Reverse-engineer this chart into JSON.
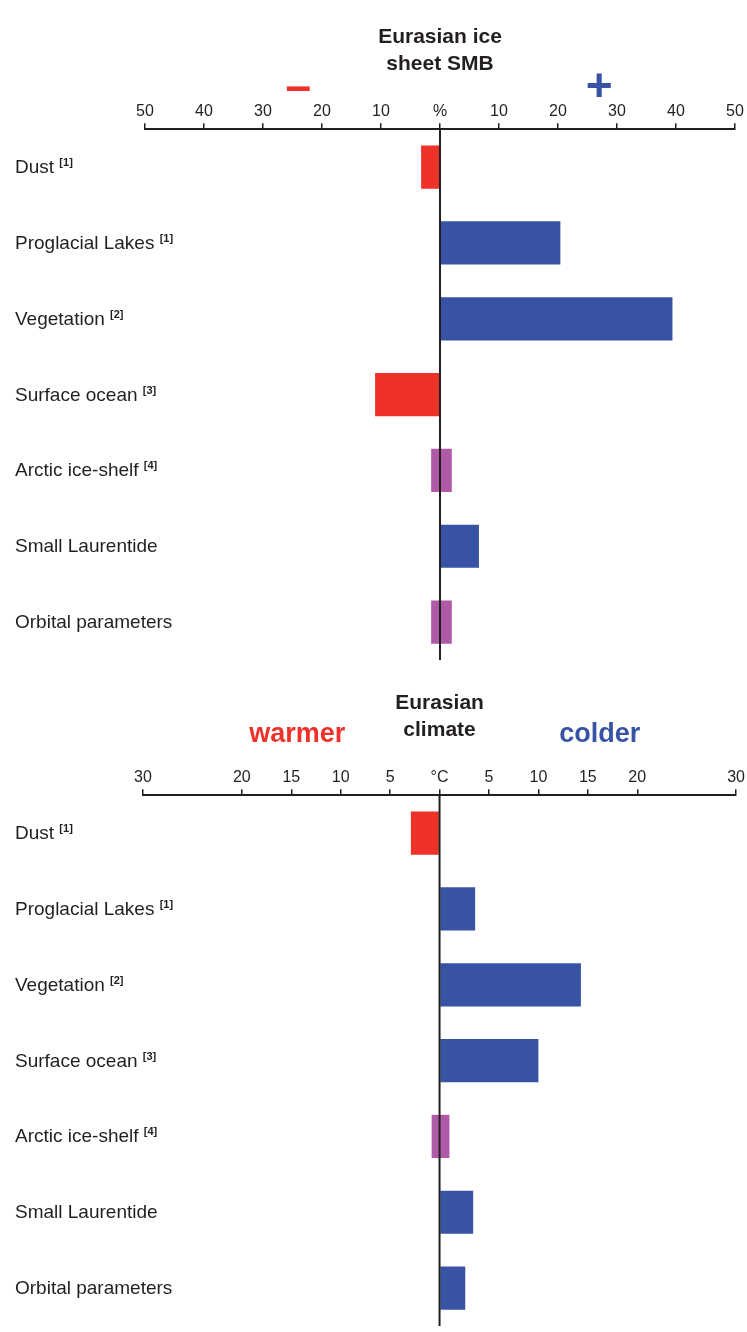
{
  "chart_data": [
    {
      "type": "bar",
      "orientation": "horizontal",
      "title": "Eurasian ice sheet SMB",
      "categories": [
        "Dust $^{[1]}$",
        "Proglacial Lakes $^{[1]}$",
        "Vegetation $^{[2]}$",
        "Surface ocean $^{[3]}$",
        "Arctic ice-shelf $^{[4]}$",
        "Small Laurentide",
        "Orbital parameters"
      ],
      "values": [
        -3.2,
        20.4,
        39.4,
        -11,
        3.5,
        6.6,
        3.5
      ],
      "base": [
        0,
        0,
        0,
        0,
        -1.5,
        0,
        -1.5
      ],
      "colors": [
        "#ee3129",
        "#3853a4",
        "#3853a4",
        "#ee3129",
        "#b05aa7",
        "#3853a4",
        "#b05aa7"
      ],
      "xlim": [
        -50,
        50
      ],
      "xticks": [
        {
          "value": -50,
          "label": "50"
        },
        {
          "value": -40,
          "label": "40"
        },
        {
          "value": -30,
          "label": "30"
        },
        {
          "value": -20,
          "label": "20"
        },
        {
          "value": -10,
          "label": "10"
        },
        {
          "value": 0,
          "label": "%"
        },
        10,
        20,
        30,
        40,
        50
      ],
      "annotations": [
        "–",
        "+"
      ],
      "grid": false,
      "legend": false,
      "ref_lines": [
        {
          "axis": "x",
          "value": 0,
          "color": "#231f20"
        }
      ]
    },
    {
      "type": "bar",
      "orientation": "horizontal",
      "title": "Eurasian climate",
      "categories": [
        "Dust $^{[1]}$",
        "Proglacial Lakes $^{[1]}$",
        "Vegetation $^{[2]}$",
        "Surface ocean $^{[3]}$",
        "Arctic ice-shelf $^{[4]}$",
        "Small Laurentide",
        "Orbital parameters"
      ],
      "values": [
        -2.9,
        3.6,
        14.3,
        10,
        1.8,
        3.4,
        2.6
      ],
      "base": [
        0,
        0,
        0,
        0,
        -0.8,
        0,
        0
      ],
      "colors": [
        "#ee3129",
        "#3853a4",
        "#3853a4",
        "#3853a4",
        "#b05aa7",
        "#3853a4",
        "#3853a4"
      ],
      "xlim": [
        -30,
        30
      ],
      "xticks": [
        {
          "value": -30,
          "label": "30"
        },
        {
          "value": -20,
          "label": "20"
        },
        {
          "value": -15,
          "label": "15"
        },
        {
          "value": -10,
          "label": "10"
        },
        {
          "value": -5,
          "label": "5"
        },
        {
          "value": 0,
          "label": "°C"
        },
        5,
        10,
        15,
        20,
        30
      ],
      "annotations": [
        "warmer",
        "colder"
      ],
      "grid": false,
      "legend": false,
      "ref_lines": [
        {
          "axis": "x",
          "value": 0,
          "color": "#231f20"
        }
      ]
    }
  ]
}
